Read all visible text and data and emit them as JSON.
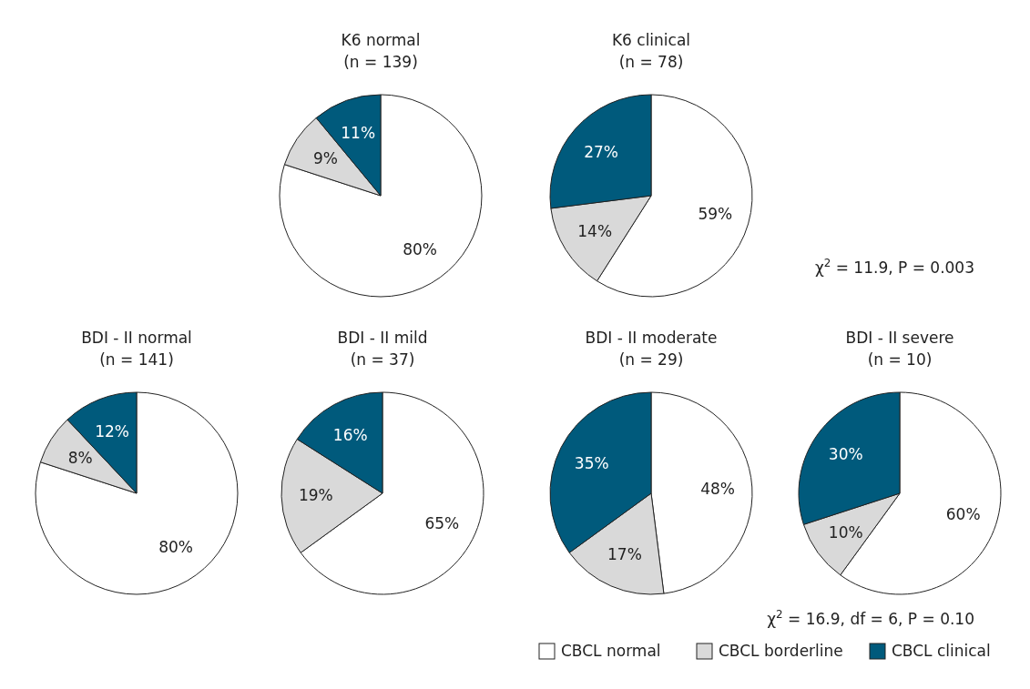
{
  "chart_data": [
    {
      "type": "pie",
      "title": "K6 normal",
      "subtitle": "(n = 139)",
      "categories": [
        null,
        null,
        null
      ],
      "values": [
        80,
        9,
        11
      ],
      "colors": [
        "#ffffff",
        "#d9d9d9",
        "#005a7c"
      ],
      "value_labels": [
        "80%",
        "9%",
        "11%"
      ]
    },
    {
      "type": "pie",
      "title": "K6 clinical",
      "subtitle": "(n = 78)",
      "categories": [
        null,
        null,
        null
      ],
      "values": [
        59,
        14,
        27
      ],
      "colors": [
        "#ffffff",
        "#d9d9d9",
        "#005a7c"
      ],
      "value_labels": [
        "59%",
        "14%",
        "27%"
      ],
      "annotations": [
        "χ$^{2}$ = 11.9,  P = 0.003"
      ]
    },
    {
      "type": "pie",
      "title": "BDI - II normal",
      "subtitle": "(n = 141)",
      "categories": [
        null,
        null,
        null
      ],
      "values": [
        80,
        8,
        12
      ],
      "colors": [
        "#ffffff",
        "#d9d9d9",
        "#005a7c"
      ],
      "value_labels": [
        "80%",
        "8%",
        "12%"
      ]
    },
    {
      "type": "pie",
      "title": "BDI - II mild",
      "subtitle": "(n = 37)",
      "categories": [
        null,
        null,
        null
      ],
      "values": [
        65,
        19,
        16
      ],
      "colors": [
        "#ffffff",
        "#d9d9d9",
        "#005a7c"
      ],
      "value_labels": [
        "65%",
        "19%",
        "16%"
      ]
    },
    {
      "type": "pie",
      "title": "BDI - II moderate",
      "subtitle": "(n = 29)",
      "categories": [
        null,
        null,
        null
      ],
      "values": [
        48,
        17,
        35
      ],
      "colors": [
        "#ffffff",
        "#d9d9d9",
        "#005a7c"
      ],
      "value_labels": [
        "48%",
        "17%",
        "35%"
      ]
    },
    {
      "type": "pie",
      "title": "BDI - II severe",
      "subtitle": "(n = 10)",
      "categories": [
        "CBCL normal",
        "CBCL borderline",
        "CBCL clinical"
      ],
      "values": [
        60,
        10,
        30
      ],
      "colors": [
        "#ffffff",
        "#d9d9d9",
        "#005a7c"
      ],
      "value_labels": [
        "60%",
        "10%",
        "30%"
      ],
      "legend": "bottom left",
      "annotations": [
        "χ$^{2}$ = 16.9, df = 6, P = 0.10"
      ]
    }
  ]
}
